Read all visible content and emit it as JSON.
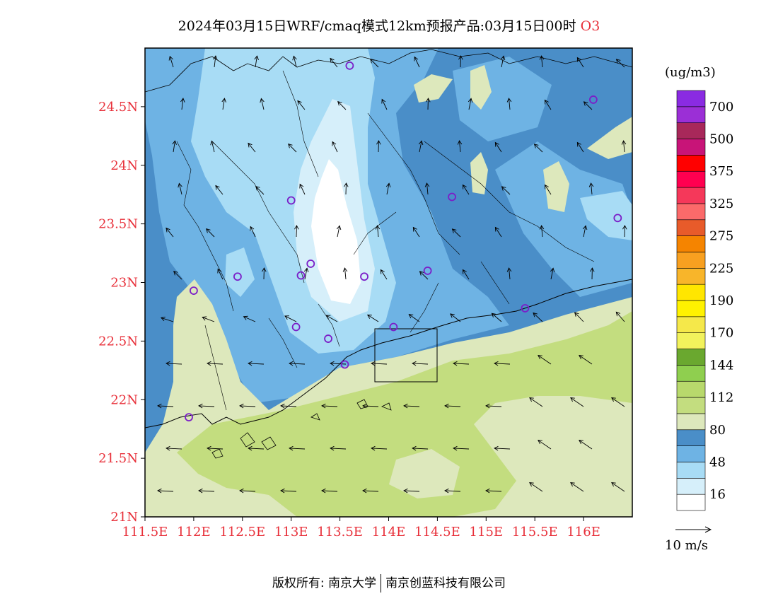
{
  "title": {
    "text": "2024年03月15日WRF/cmaq模式12km预报产品:03月15日00时",
    "variable": "O3"
  },
  "map": {
    "lon_range": [
      111.5,
      116.5
    ],
    "lat_range": [
      21.0,
      25.0
    ],
    "lon_ticks": [
      {
        "value": 111.5,
        "label": "111.5E"
      },
      {
        "value": 112.0,
        "label": "112E"
      },
      {
        "value": 112.5,
        "label": "112.5E"
      },
      {
        "value": 113.0,
        "label": "113E"
      },
      {
        "value": 113.5,
        "label": "113.5E"
      },
      {
        "value": 114.0,
        "label": "114E"
      },
      {
        "value": 114.5,
        "label": "114.5E"
      },
      {
        "value": 115.0,
        "label": "115E"
      },
      {
        "value": 115.5,
        "label": "115.5E"
      },
      {
        "value": 116.0,
        "label": "116E"
      }
    ],
    "lat_ticks": [
      {
        "value": 21.0,
        "label": "21N"
      },
      {
        "value": 21.5,
        "label": "21.5N"
      },
      {
        "value": 22.0,
        "label": "22N"
      },
      {
        "value": 22.5,
        "label": "22.5N"
      },
      {
        "value": 23.0,
        "label": "23N"
      },
      {
        "value": 23.5,
        "label": "23.5N"
      },
      {
        "value": 24.0,
        "label": "24N"
      },
      {
        "value": 24.5,
        "label": "24.5N"
      }
    ],
    "stations": [
      {
        "lon": 113.6,
        "lat": 24.85
      },
      {
        "lon": 116.1,
        "lat": 24.56
      },
      {
        "lon": 113.0,
        "lat": 23.7
      },
      {
        "lon": 114.65,
        "lat": 23.73
      },
      {
        "lon": 116.35,
        "lat": 23.55
      },
      {
        "lon": 113.2,
        "lat": 23.16
      },
      {
        "lon": 112.45,
        "lat": 23.05
      },
      {
        "lon": 113.1,
        "lat": 23.06
      },
      {
        "lon": 113.75,
        "lat": 23.05
      },
      {
        "lon": 114.4,
        "lat": 23.1
      },
      {
        "lon": 112.0,
        "lat": 22.93
      },
      {
        "lon": 115.4,
        "lat": 22.78
      },
      {
        "lon": 113.05,
        "lat": 22.62
      },
      {
        "lon": 113.38,
        "lat": 22.52
      },
      {
        "lon": 114.05,
        "lat": 22.62
      },
      {
        "lon": 113.55,
        "lat": 22.3
      },
      {
        "lon": 111.95,
        "lat": 21.85
      }
    ]
  },
  "colorbar": {
    "unit": "(ug/m3)",
    "colors": [
      "#ffffff",
      "#d6effa",
      "#a8dcf5",
      "#6eb3e4",
      "#4a8ec8",
      "#dde8bc",
      "#c3dd7f",
      "#b8d96c",
      "#8fcf4f",
      "#6aa82f",
      "#f2f25c",
      "#f5e84a",
      "#fff200",
      "#ffe600",
      "#f8b52a",
      "#f8a020",
      "#f58400",
      "#e85b2a",
      "#fb6a6a",
      "#f5385a",
      "#ff0050",
      "#ff0000",
      "#c81478",
      "#a8285a",
      "#9b2fd6",
      "#8a2be2"
    ],
    "labels": [
      "16",
      "48",
      "80",
      "112",
      "144",
      "170",
      "190",
      "225",
      "275",
      "325",
      "375",
      "500",
      "700"
    ],
    "wind_ref": "10 m/s"
  },
  "colors": {
    "axis_label": "#e8303a",
    "station": "#7b1ec8"
  },
  "footer": {
    "left": "版权所有: 南京大学",
    "right": "南京创蓝科技有限公司"
  }
}
